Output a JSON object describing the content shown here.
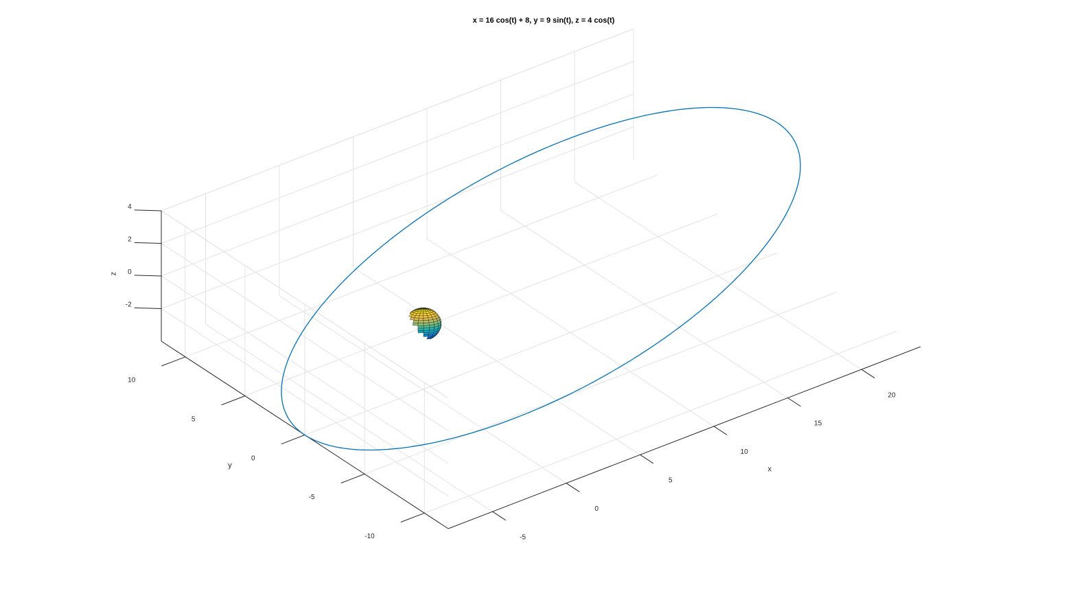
{
  "chart_data": {
    "type": "line",
    "title": "x = 16 cos(t) + 8, y = 9 sin(t), z = 4 cos(t)",
    "xlabel": "x",
    "ylabel": "y",
    "zlabel": "z",
    "xlim": [
      -8,
      24
    ],
    "ylim": [
      -12,
      12
    ],
    "zlim": [
      -4,
      4
    ],
    "xticks": [
      -5,
      0,
      5,
      10,
      15,
      20
    ],
    "yticks": [
      -10,
      -5,
      0,
      5,
      10
    ],
    "zticks": [
      -2,
      0,
      2,
      4
    ],
    "grid": true,
    "series": [
      {
        "kind": "parametric-curve",
        "x_expr": "16 cos(t) + 8",
        "y_expr": "9 sin(t)",
        "z_expr": "4 cos(t)",
        "t_range": [
          0,
          6.283185
        ],
        "color": "#0072BD"
      },
      {
        "kind": "sphere",
        "center": [
          0,
          0,
          0
        ],
        "radius": 1,
        "colormap": "parula"
      }
    ]
  }
}
